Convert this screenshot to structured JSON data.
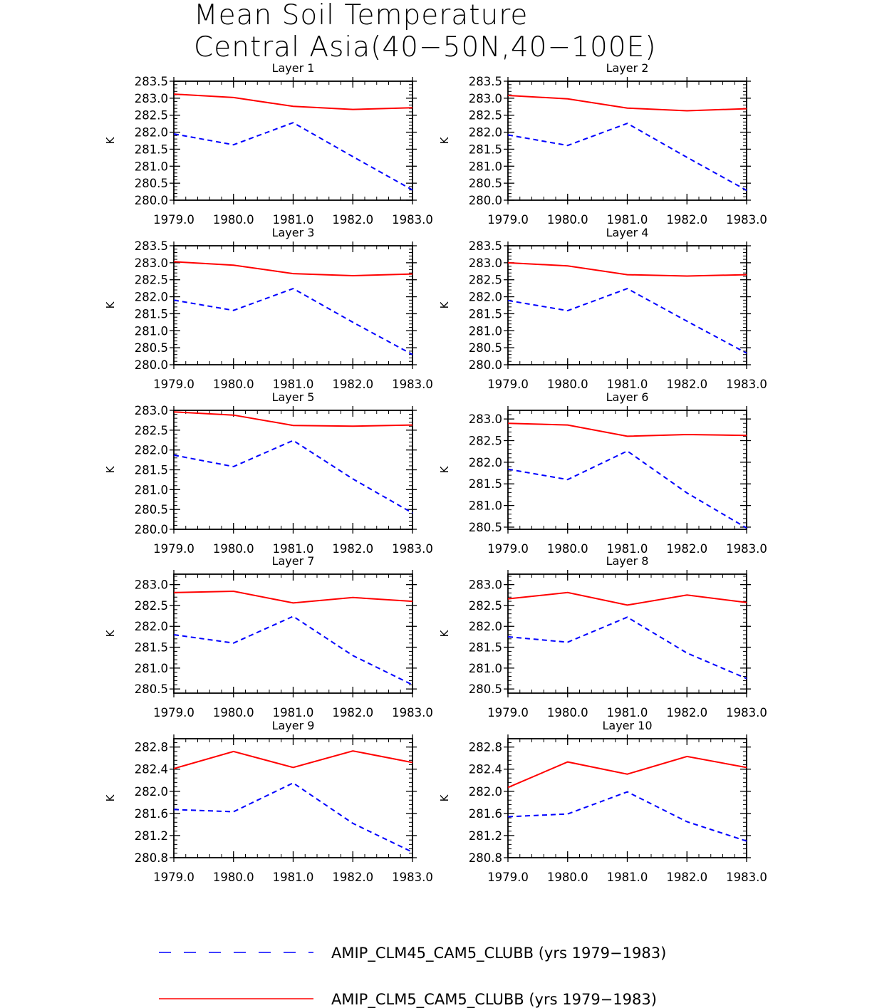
{
  "title": {
    "line1": "Mean Soil Temperature",
    "line2": "Central Asia(40−50N,40−100E)"
  },
  "colors": {
    "series_clm45": "#0000ff",
    "series_clm5": "#ff0000"
  },
  "legend": [
    {
      "label": "AMIP_CLM45_CAM5_CLUBB (yrs 1979−1983)",
      "style": "dashed",
      "color": "#0000ff"
    },
    {
      "label": "AMIP_CLM5_CAM5_CLUBB (yrs 1979−1983)",
      "style": "solid",
      "color": "#ff0000"
    }
  ],
  "chart_data": [
    {
      "type": "line",
      "title": "Layer 1",
      "xlabel": "",
      "ylabel": "K",
      "x": [
        1979,
        1980,
        1981,
        1982,
        1983
      ],
      "x_ticks": [
        "1979.0",
        "1980.0",
        "1981.0",
        "1982.0",
        "1983.0"
      ],
      "ylim": [
        280.0,
        283.5
      ],
      "y_ticks": [
        "280.0",
        "280.5",
        "281.0",
        "281.5",
        "282.0",
        "282.5",
        "283.0",
        "283.5"
      ],
      "series": [
        {
          "name": "AMIP_CLM45_CAM5_CLUBB (yrs 1979−1983)",
          "values": [
            281.95,
            281.63,
            282.28,
            281.28,
            280.3
          ]
        },
        {
          "name": "AMIP_CLM5_CAM5_CLUBB (yrs 1979−1983)",
          "values": [
            283.12,
            283.02,
            282.76,
            282.67,
            282.72
          ]
        }
      ]
    },
    {
      "type": "line",
      "title": "Layer 2",
      "xlabel": "",
      "ylabel": "K",
      "x": [
        1979,
        1980,
        1981,
        1982,
        1983
      ],
      "x_ticks": [
        "1979.0",
        "1980.0",
        "1981.0",
        "1982.0",
        "1983.0"
      ],
      "ylim": [
        280.0,
        283.5
      ],
      "y_ticks": [
        "280.0",
        "280.5",
        "281.0",
        "281.5",
        "282.0",
        "282.5",
        "283.0",
        "283.5"
      ],
      "series": [
        {
          "name": "AMIP_CLM45_CAM5_CLUBB (yrs 1979−1983)",
          "values": [
            281.92,
            281.61,
            282.26,
            281.26,
            280.29
          ]
        },
        {
          "name": "AMIP_CLM5_CAM5_CLUBB (yrs 1979−1983)",
          "values": [
            283.08,
            282.98,
            282.71,
            282.63,
            282.69
          ]
        }
      ]
    },
    {
      "type": "line",
      "title": "Layer 3",
      "xlabel": "",
      "ylabel": "K",
      "x": [
        1979,
        1980,
        1981,
        1982,
        1983
      ],
      "x_ticks": [
        "1979.0",
        "1980.0",
        "1981.0",
        "1982.0",
        "1983.0"
      ],
      "ylim": [
        280.0,
        283.5
      ],
      "y_ticks": [
        "280.0",
        "280.5",
        "281.0",
        "281.5",
        "282.0",
        "282.5",
        "283.0",
        "283.5"
      ],
      "series": [
        {
          "name": "AMIP_CLM45_CAM5_CLUBB (yrs 1979−1983)",
          "values": [
            281.9,
            281.6,
            282.24,
            281.25,
            280.3
          ]
        },
        {
          "name": "AMIP_CLM5_CAM5_CLUBB (yrs 1979−1983)",
          "values": [
            283.03,
            282.93,
            282.68,
            282.62,
            282.67
          ]
        }
      ]
    },
    {
      "type": "line",
      "title": "Layer 4",
      "xlabel": "",
      "ylabel": "K",
      "x": [
        1979,
        1980,
        1981,
        1982,
        1983
      ],
      "x_ticks": [
        "1979.0",
        "1980.0",
        "1981.0",
        "1982.0",
        "1983.0"
      ],
      "ylim": [
        280.0,
        283.5
      ],
      "y_ticks": [
        "280.0",
        "280.5",
        "281.0",
        "281.5",
        "282.0",
        "282.5",
        "283.0",
        "283.5"
      ],
      "series": [
        {
          "name": "AMIP_CLM45_CAM5_CLUBB (yrs 1979−1983)",
          "values": [
            281.89,
            281.59,
            282.24,
            281.28,
            280.34
          ]
        },
        {
          "name": "AMIP_CLM5_CAM5_CLUBB (yrs 1979−1983)",
          "values": [
            283.0,
            282.91,
            282.65,
            282.61,
            282.65
          ]
        }
      ]
    },
    {
      "type": "line",
      "title": "Layer 5",
      "xlabel": "",
      "ylabel": "K",
      "x": [
        1979,
        1980,
        1981,
        1982,
        1983
      ],
      "x_ticks": [
        "1979.0",
        "1980.0",
        "1981.0",
        "1982.0",
        "1983.0"
      ],
      "ylim": [
        280.0,
        283.0
      ],
      "y_ticks": [
        "280.0",
        "280.5",
        "281.0",
        "281.5",
        "282.0",
        "282.5",
        "283.0"
      ],
      "series": [
        {
          "name": "AMIP_CLM45_CAM5_CLUBB (yrs 1979−1983)",
          "values": [
            281.87,
            281.58,
            282.24,
            281.27,
            280.41
          ]
        },
        {
          "name": "AMIP_CLM5_CAM5_CLUBB (yrs 1979−1983)",
          "values": [
            282.96,
            282.88,
            282.62,
            282.6,
            282.63
          ]
        }
      ]
    },
    {
      "type": "line",
      "title": "Layer 6",
      "xlabel": "",
      "ylabel": "K",
      "x": [
        1979,
        1980,
        1981,
        1982,
        1983
      ],
      "x_ticks": [
        "1979.0",
        "1980.0",
        "1981.0",
        "1982.0",
        "1983.0"
      ],
      "ylim": [
        280.45,
        283.2
      ],
      "y_ticks": [
        "280.5",
        "281.0",
        "281.5",
        "282.0",
        "282.5",
        "283.0"
      ],
      "series": [
        {
          "name": "AMIP_CLM45_CAM5_CLUBB (yrs 1979−1983)",
          "values": [
            281.84,
            281.6,
            282.26,
            281.29,
            280.48
          ]
        },
        {
          "name": "AMIP_CLM5_CAM5_CLUBB (yrs 1979−1983)",
          "values": [
            282.9,
            282.86,
            282.6,
            282.64,
            282.62
          ]
        }
      ]
    },
    {
      "type": "line",
      "title": "Layer 7",
      "xlabel": "",
      "ylabel": "K",
      "x": [
        1979,
        1980,
        1981,
        1982,
        1983
      ],
      "x_ticks": [
        "1979.0",
        "1980.0",
        "1981.0",
        "1982.0",
        "1983.0"
      ],
      "ylim": [
        280.4,
        283.25
      ],
      "y_ticks": [
        "280.5",
        "281.0",
        "281.5",
        "282.0",
        "282.5",
        "283.0"
      ],
      "series": [
        {
          "name": "AMIP_CLM45_CAM5_CLUBB (yrs 1979−1983)",
          "values": [
            281.8,
            281.6,
            282.24,
            281.3,
            280.6
          ]
        },
        {
          "name": "AMIP_CLM5_CAM5_CLUBB (yrs 1979−1983)",
          "values": [
            282.81,
            282.84,
            282.56,
            282.69,
            282.6
          ]
        }
      ]
    },
    {
      "type": "line",
      "title": "Layer 8",
      "xlabel": "",
      "ylabel": "K",
      "x": [
        1979,
        1980,
        1981,
        1982,
        1983
      ],
      "x_ticks": [
        "1979.0",
        "1980.0",
        "1981.0",
        "1982.0",
        "1983.0"
      ],
      "ylim": [
        280.4,
        283.25
      ],
      "y_ticks": [
        "280.5",
        "281.0",
        "281.5",
        "282.0",
        "282.5",
        "283.0"
      ],
      "series": [
        {
          "name": "AMIP_CLM45_CAM5_CLUBB (yrs 1979−1983)",
          "values": [
            281.75,
            281.62,
            282.22,
            281.36,
            280.75
          ]
        },
        {
          "name": "AMIP_CLM5_CAM5_CLUBB (yrs 1979−1983)",
          "values": [
            282.66,
            282.81,
            282.51,
            282.75,
            282.57
          ]
        }
      ]
    },
    {
      "type": "line",
      "title": "Layer 9",
      "xlabel": "",
      "ylabel": "K",
      "x": [
        1979,
        1980,
        1981,
        1982,
        1983
      ],
      "x_ticks": [
        "1979.0",
        "1980.0",
        "1981.0",
        "1982.0",
        "1983.0"
      ],
      "ylim": [
        280.8,
        282.95
      ],
      "y_ticks": [
        "280.8",
        "281.2",
        "281.6",
        "282.0",
        "282.4",
        "282.8"
      ],
      "series": [
        {
          "name": "AMIP_CLM45_CAM5_CLUBB (yrs 1979−1983)",
          "values": [
            281.67,
            281.63,
            282.15,
            281.42,
            280.9
          ]
        },
        {
          "name": "AMIP_CLM5_CAM5_CLUBB (yrs 1979−1983)",
          "values": [
            282.41,
            282.72,
            282.43,
            282.73,
            282.52
          ]
        }
      ]
    },
    {
      "type": "line",
      "title": "Layer 10",
      "xlabel": "",
      "ylabel": "K",
      "x": [
        1979,
        1980,
        1981,
        1982,
        1983
      ],
      "x_ticks": [
        "1979.0",
        "1980.0",
        "1981.0",
        "1982.0",
        "1983.0"
      ],
      "ylim": [
        280.8,
        282.95
      ],
      "y_ticks": [
        "280.8",
        "281.2",
        "281.6",
        "282.0",
        "282.4",
        "282.8"
      ],
      "series": [
        {
          "name": "AMIP_CLM45_CAM5_CLUBB (yrs 1979−1983)",
          "values": [
            281.54,
            281.59,
            281.99,
            281.45,
            281.1
          ]
        },
        {
          "name": "AMIP_CLM5_CAM5_CLUBB (yrs 1979−1983)",
          "values": [
            282.07,
            282.53,
            282.31,
            282.63,
            282.43
          ]
        }
      ]
    }
  ]
}
